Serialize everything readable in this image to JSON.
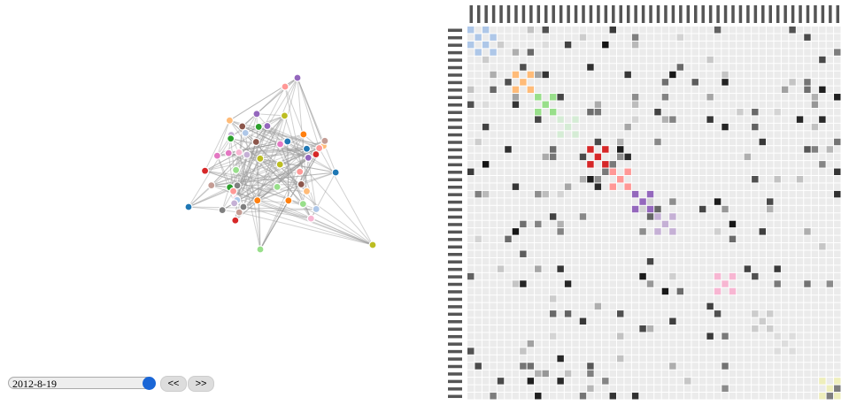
{
  "timeline": {
    "date": "2012-8-19",
    "prev_button": "<<",
    "next_button": ">>"
  }
}
